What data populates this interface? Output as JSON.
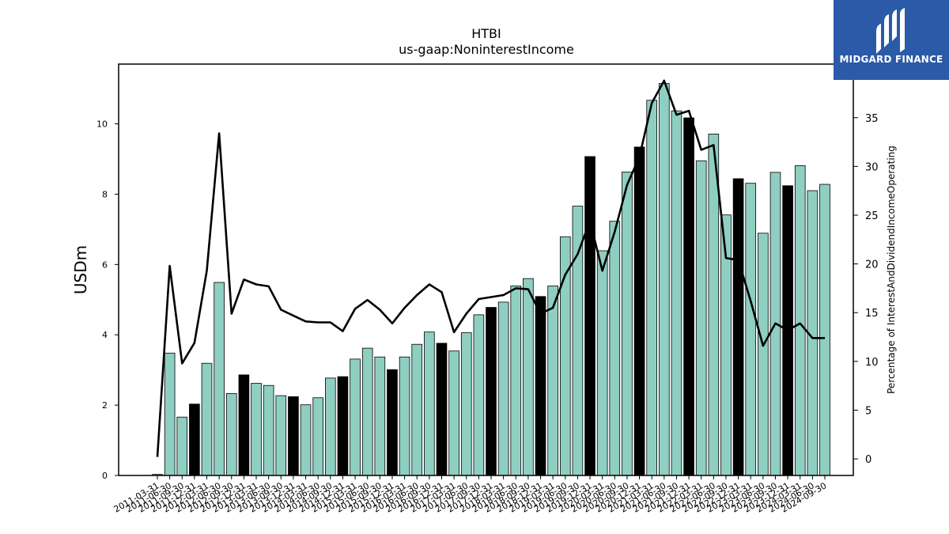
{
  "logo": {
    "text": "MIDGARD FINANCE",
    "icon": "midgard-logo-icon",
    "color": "#2b5aa8"
  },
  "chart_data": {
    "type": "bar",
    "title": "HTBI",
    "subtitle": "us-gaap:NoninterestIncome",
    "ylabel": "USDm",
    "y2label": "Percentage of InterestAndDividendIncomeOperating",
    "ylim": [
      0,
      11.7
    ],
    "y2lim": [
      -1.7,
      40.5
    ],
    "yticks": [
      0,
      2,
      4,
      6,
      8,
      10
    ],
    "y2ticks": [
      0,
      5,
      10,
      15,
      20,
      25,
      30,
      35
    ],
    "grid": false,
    "bar_color": "#8ecfc2",
    "q4_bar_color": "#000000",
    "line_color": "#000000",
    "categories": [
      "2011-03-31",
      "2011-06-30",
      "2011-09-30",
      "2011-12-31",
      "2012-03-31",
      "2012-06-30",
      "2012-09-30",
      "2012-12-31",
      "2013-03-31",
      "2013-06-30",
      "2013-09-30",
      "2013-12-31",
      "2014-03-31",
      "2014-06-30",
      "2014-09-30",
      "2014-12-31",
      "2015-03-31",
      "2015-06-30",
      "2015-09-30",
      "2015-12-31",
      "2016-03-31",
      "2016-06-30",
      "2016-09-30",
      "2016-12-31",
      "2017-03-31",
      "2017-06-30",
      "2017-09-30",
      "2017-12-31",
      "2018-03-31",
      "2018-06-30",
      "2018-09-30",
      "2018-12-31",
      "2019-03-31",
      "2019-06-30",
      "2019-09-30",
      "2019-12-31",
      "2020-03-31",
      "2020-06-30",
      "2020-09-30",
      "2020-12-31",
      "2021-03-31",
      "2021-06-30",
      "2021-09-30",
      "2021-12-31",
      "2022-03-31",
      "2022-06-30",
      "2022-09-30",
      "2022-12-31",
      "2023-03-31",
      "2023-06-30",
      "2023-09-30",
      "2023-12-31",
      "2024-03-31",
      "2024-06-30",
      "2024-09-30"
    ],
    "series": [
      {
        "kind": "bar",
        "axis": "left",
        "values": [
          0.03,
          3.48,
          1.66,
          2.03,
          3.19,
          5.49,
          2.33,
          2.86,
          2.62,
          2.56,
          2.27,
          2.24,
          2.01,
          2.21,
          2.77,
          2.81,
          3.31,
          3.62,
          3.37,
          3.01,
          3.37,
          3.73,
          4.08,
          3.76,
          3.54,
          4.06,
          4.57,
          4.78,
          4.93,
          5.39,
          5.6,
          5.09,
          5.39,
          6.79,
          7.66,
          9.07,
          6.39,
          7.23,
          8.63,
          9.34,
          10.67,
          11.15,
          10.37,
          10.17,
          8.95,
          9.71,
          7.41,
          8.44,
          8.31,
          6.89,
          8.62,
          8.24,
          8.81,
          8.1,
          8.28
        ]
      },
      {
        "kind": "line",
        "axis": "right",
        "values": [
          0.2,
          19.8,
          9.8,
          11.9,
          19.3,
          33.4,
          14.9,
          18.4,
          17.9,
          17.7,
          15.3,
          14.7,
          14.1,
          14.0,
          14.0,
          13.1,
          15.4,
          16.3,
          15.3,
          13.9,
          15.5,
          16.8,
          17.9,
          17.1,
          13.0,
          14.9,
          16.4,
          16.6,
          16.8,
          17.5,
          17.4,
          14.9,
          15.5,
          18.9,
          21.0,
          24.4,
          19.3,
          23.3,
          28.1,
          31.0,
          36.5,
          38.8,
          35.3,
          35.7,
          31.7,
          32.2,
          20.6,
          20.4,
          16.2,
          11.6,
          13.9,
          13.2,
          13.9,
          12.4,
          12.4
        ]
      }
    ]
  }
}
